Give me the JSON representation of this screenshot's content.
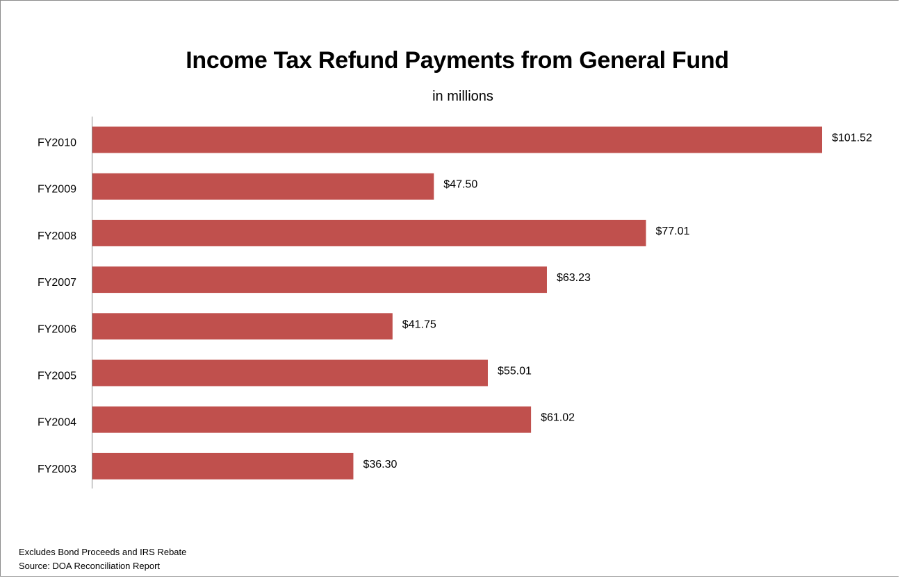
{
  "chart_data": {
    "type": "bar",
    "orientation": "horizontal",
    "title": "Income Tax Refund Payments from General Fund",
    "subtitle": "in millions",
    "categories": [
      "FY2010",
      "FY2009",
      "FY2008",
      "FY2007",
      "FY2006",
      "FY2005",
      "FY2004",
      "FY2003"
    ],
    "values": [
      101.52,
      47.5,
      77.01,
      63.23,
      41.75,
      55.01,
      61.02,
      36.3
    ],
    "data_labels": [
      "$101.52",
      "$47.50",
      "$77.01",
      "$63.23",
      "$41.75",
      "$55.01",
      "$61.02",
      "$36.30"
    ],
    "xlim": [
      0,
      101.52
    ],
    "bar_color": "#c0504d",
    "grid": false,
    "legend": "none"
  },
  "notes": {
    "line1": "Excludes Bond Proceeds and IRS Rebate",
    "line2": "Source:  DOA Reconciliation Report"
  }
}
